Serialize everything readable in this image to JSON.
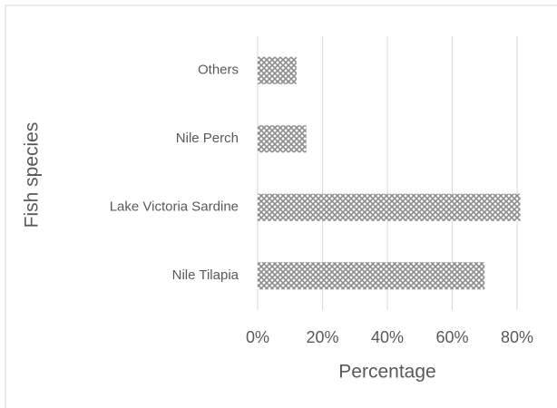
{
  "chart_data": {
    "type": "barh",
    "categories": [
      "Nile Tilapia",
      "Lake Victoria Sardine",
      "Nile Perch",
      "Others"
    ],
    "values": [
      70,
      81,
      15,
      12
    ],
    "color": "#8c8c8c",
    "xlabel": "Percentage",
    "ylabel": "Fish species",
    "xlim": [
      0,
      80
    ],
    "xticks": [
      {
        "value": 0,
        "label": "0%"
      },
      {
        "value": 20,
        "label": "20%"
      },
      {
        "value": 40,
        "label": "40%"
      },
      {
        "value": 60,
        "label": "60%"
      },
      {
        "value": 80,
        "label": "80%"
      }
    ],
    "grid": true
  }
}
